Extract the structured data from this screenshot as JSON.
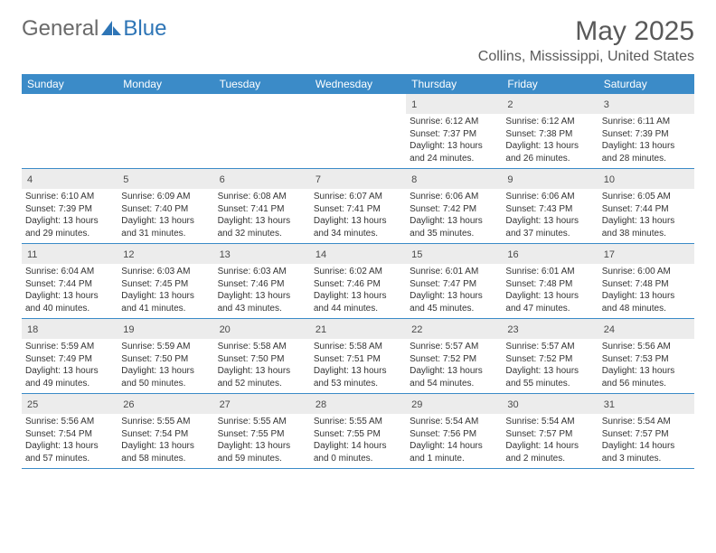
{
  "logo": {
    "text1": "General",
    "text2": "Blue"
  },
  "title": "May 2025",
  "location": "Collins, Mississippi, United States",
  "colors": {
    "header_bg": "#3b8bc8",
    "header_text": "#ffffff",
    "daynum_bg": "#ececec",
    "border": "#3b8bc8",
    "logo_gray": "#6a6a6a",
    "logo_blue": "#2e75b6",
    "title_color": "#595959"
  },
  "weekdays": [
    "Sunday",
    "Monday",
    "Tuesday",
    "Wednesday",
    "Thursday",
    "Friday",
    "Saturday"
  ],
  "weeks": [
    [
      null,
      null,
      null,
      null,
      {
        "d": "1",
        "sr": "6:12 AM",
        "ss": "7:37 PM",
        "dl": "13 hours and 24 minutes."
      },
      {
        "d": "2",
        "sr": "6:12 AM",
        "ss": "7:38 PM",
        "dl": "13 hours and 26 minutes."
      },
      {
        "d": "3",
        "sr": "6:11 AM",
        "ss": "7:39 PM",
        "dl": "13 hours and 28 minutes."
      }
    ],
    [
      {
        "d": "4",
        "sr": "6:10 AM",
        "ss": "7:39 PM",
        "dl": "13 hours and 29 minutes."
      },
      {
        "d": "5",
        "sr": "6:09 AM",
        "ss": "7:40 PM",
        "dl": "13 hours and 31 minutes."
      },
      {
        "d": "6",
        "sr": "6:08 AM",
        "ss": "7:41 PM",
        "dl": "13 hours and 32 minutes."
      },
      {
        "d": "7",
        "sr": "6:07 AM",
        "ss": "7:41 PM",
        "dl": "13 hours and 34 minutes."
      },
      {
        "d": "8",
        "sr": "6:06 AM",
        "ss": "7:42 PM",
        "dl": "13 hours and 35 minutes."
      },
      {
        "d": "9",
        "sr": "6:06 AM",
        "ss": "7:43 PM",
        "dl": "13 hours and 37 minutes."
      },
      {
        "d": "10",
        "sr": "6:05 AM",
        "ss": "7:44 PM",
        "dl": "13 hours and 38 minutes."
      }
    ],
    [
      {
        "d": "11",
        "sr": "6:04 AM",
        "ss": "7:44 PM",
        "dl": "13 hours and 40 minutes."
      },
      {
        "d": "12",
        "sr": "6:03 AM",
        "ss": "7:45 PM",
        "dl": "13 hours and 41 minutes."
      },
      {
        "d": "13",
        "sr": "6:03 AM",
        "ss": "7:46 PM",
        "dl": "13 hours and 43 minutes."
      },
      {
        "d": "14",
        "sr": "6:02 AM",
        "ss": "7:46 PM",
        "dl": "13 hours and 44 minutes."
      },
      {
        "d": "15",
        "sr": "6:01 AM",
        "ss": "7:47 PM",
        "dl": "13 hours and 45 minutes."
      },
      {
        "d": "16",
        "sr": "6:01 AM",
        "ss": "7:48 PM",
        "dl": "13 hours and 47 minutes."
      },
      {
        "d": "17",
        "sr": "6:00 AM",
        "ss": "7:48 PM",
        "dl": "13 hours and 48 minutes."
      }
    ],
    [
      {
        "d": "18",
        "sr": "5:59 AM",
        "ss": "7:49 PM",
        "dl": "13 hours and 49 minutes."
      },
      {
        "d": "19",
        "sr": "5:59 AM",
        "ss": "7:50 PM",
        "dl": "13 hours and 50 minutes."
      },
      {
        "d": "20",
        "sr": "5:58 AM",
        "ss": "7:50 PM",
        "dl": "13 hours and 52 minutes."
      },
      {
        "d": "21",
        "sr": "5:58 AM",
        "ss": "7:51 PM",
        "dl": "13 hours and 53 minutes."
      },
      {
        "d": "22",
        "sr": "5:57 AM",
        "ss": "7:52 PM",
        "dl": "13 hours and 54 minutes."
      },
      {
        "d": "23",
        "sr": "5:57 AM",
        "ss": "7:52 PM",
        "dl": "13 hours and 55 minutes."
      },
      {
        "d": "24",
        "sr": "5:56 AM",
        "ss": "7:53 PM",
        "dl": "13 hours and 56 minutes."
      }
    ],
    [
      {
        "d": "25",
        "sr": "5:56 AM",
        "ss": "7:54 PM",
        "dl": "13 hours and 57 minutes."
      },
      {
        "d": "26",
        "sr": "5:55 AM",
        "ss": "7:54 PM",
        "dl": "13 hours and 58 minutes."
      },
      {
        "d": "27",
        "sr": "5:55 AM",
        "ss": "7:55 PM",
        "dl": "13 hours and 59 minutes."
      },
      {
        "d": "28",
        "sr": "5:55 AM",
        "ss": "7:55 PM",
        "dl": "14 hours and 0 minutes."
      },
      {
        "d": "29",
        "sr": "5:54 AM",
        "ss": "7:56 PM",
        "dl": "14 hours and 1 minute."
      },
      {
        "d": "30",
        "sr": "5:54 AM",
        "ss": "7:57 PM",
        "dl": "14 hours and 2 minutes."
      },
      {
        "d": "31",
        "sr": "5:54 AM",
        "ss": "7:57 PM",
        "dl": "14 hours and 3 minutes."
      }
    ]
  ],
  "labels": {
    "sunrise": "Sunrise: ",
    "sunset": "Sunset: ",
    "daylight": "Daylight: "
  }
}
